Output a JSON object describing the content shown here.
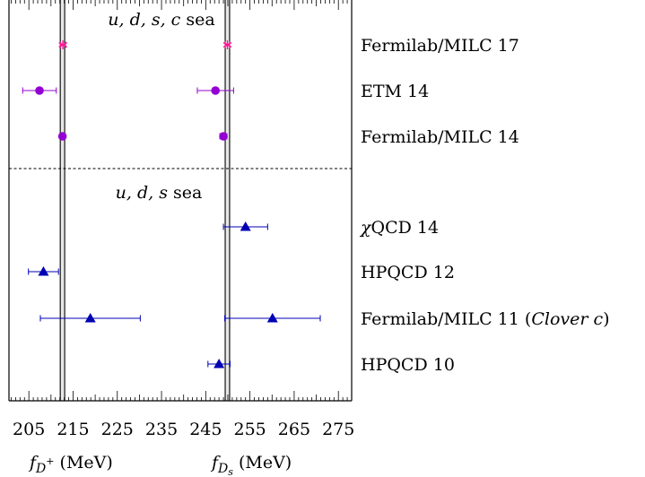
{
  "chart_data": {
    "type": "scatter",
    "x_tick_labels": [
      "205",
      "215",
      "225",
      "235",
      "245",
      "255",
      "265",
      "275"
    ],
    "xlim": [
      200.5,
      278
    ],
    "xlabels": [
      {
        "main": "f",
        "sub": "D",
        "sup": "+",
        "unit": "(MeV)"
      },
      {
        "main": "f",
        "sub": "D",
        "subsub": "s",
        "unit": "(MeV)"
      }
    ],
    "sections": [
      {
        "label_italic": "u, d, s, c",
        "label_roman": "sea"
      },
      {
        "label_italic": "u, d, s",
        "label_roman": "sea"
      }
    ],
    "bands": [
      {
        "quantity": "fD+",
        "center": 212.6,
        "halfwidth": 0.5
      },
      {
        "quantity": "fDs",
        "center": 249.9,
        "halfwidth": 0.5
      }
    ],
    "series": [
      {
        "name": "Fermilab/MILC 17",
        "name_parts": [
          {
            "t": "Fermilab/MILC 17",
            "i": false
          }
        ],
        "marker": "star",
        "color": "#ff1493",
        "fD": {
          "value": 212.7,
          "err": 0.6
        },
        "fDs": {
          "value": 249.9,
          "err": 0.5
        }
      },
      {
        "name": "ETM 14",
        "name_parts": [
          {
            "t": "ETM 14",
            "i": false
          }
        ],
        "marker": "circle",
        "color": "#9400d3",
        "fD": {
          "value": 207.4,
          "err": 3.8
        },
        "fDs": {
          "value": 247.2,
          "err": 4.1
        }
      },
      {
        "name": "Fermilab/MILC 14",
        "name_parts": [
          {
            "t": "Fermilab/MILC 14",
            "i": false
          }
        ],
        "marker": "circle",
        "color": "#9400d3",
        "fD": {
          "value": 212.6,
          "err": 0.6
        },
        "fDs": {
          "value": 249.0,
          "err": 0.8
        }
      },
      {
        "name": "χQCD 14",
        "name_parts": [
          {
            "t": "χ",
            "i": true
          },
          {
            "t": "QCD 14",
            "i": false
          }
        ],
        "marker": "triangle",
        "color": "#0000b4",
        "fD": null,
        "fDs": {
          "value": 254.0,
          "err": 5.0
        }
      },
      {
        "name": "HPQCD 12",
        "name_parts": [
          {
            "t": "HPQCD 12",
            "i": false
          }
        ],
        "marker": "triangle",
        "color": "#0000b4",
        "fD": {
          "value": 208.3,
          "err": 3.4
        },
        "fDs": null
      },
      {
        "name": "Fermilab/MILC 11 (Clover c)",
        "name_parts": [
          {
            "t": "Fermilab/MILC 11 (",
            "i": false
          },
          {
            "t": "Clover c",
            "i": true
          },
          {
            "t": ")",
            "i": false
          }
        ],
        "marker": "triangle",
        "color": "#0000b4",
        "fD": {
          "value": 218.9,
          "err": 11.3
        },
        "fDs": {
          "value": 260.1,
          "err": 10.8
        }
      },
      {
        "name": "HPQCD 10",
        "name_parts": [
          {
            "t": "HPQCD 10",
            "i": false
          }
        ],
        "marker": "triangle",
        "color": "#0000b4",
        "fD": null,
        "fDs": {
          "value": 248.0,
          "err": 2.5
        }
      }
    ]
  }
}
